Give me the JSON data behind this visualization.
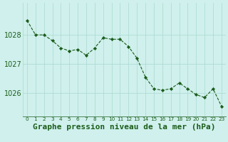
{
  "hours": [
    0,
    1,
    2,
    3,
    4,
    5,
    6,
    7,
    8,
    9,
    10,
    11,
    12,
    13,
    14,
    15,
    16,
    17,
    18,
    19,
    20,
    21,
    22,
    23
  ],
  "pressure": [
    1028.5,
    1028.0,
    1028.0,
    1027.8,
    1027.55,
    1027.45,
    1027.5,
    1027.3,
    1027.55,
    1027.9,
    1027.85,
    1027.85,
    1027.6,
    1027.2,
    1026.55,
    1026.15,
    1026.1,
    1026.15,
    1026.35,
    1026.15,
    1025.95,
    1025.85,
    1026.15,
    1025.55
  ],
  "line_color": "#1a5c1a",
  "marker_color": "#1a5c1a",
  "bg_color": "#cff0ec",
  "grid_color": "#aad8d0",
  "label_text_color": "#1a5c1a",
  "xlabel": "Graphe pression niveau de la mer (hPa)",
  "ylim_min": 1025.2,
  "ylim_max": 1029.1,
  "yticks": [
    1026,
    1027,
    1028
  ],
  "axis_fontsize": 7,
  "label_fontsize": 8
}
